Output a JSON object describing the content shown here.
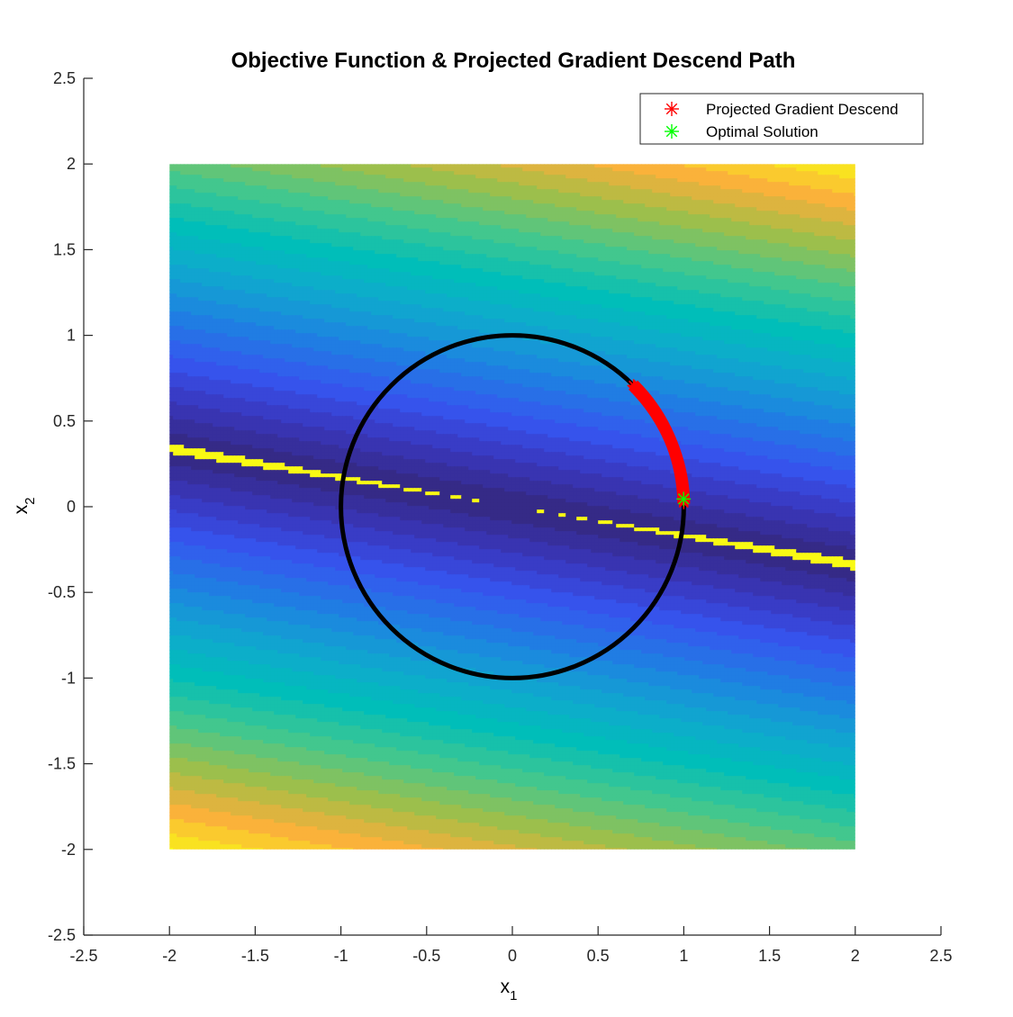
{
  "chart_data": {
    "type": "contour",
    "title": "Objective Function & Projected Gradient Descend Path",
    "xlabel": {
      "base": "x",
      "sub": "1"
    },
    "ylabel": {
      "base": "x",
      "sub": "2"
    },
    "xlim": [
      -2.5,
      2.5
    ],
    "ylim": [
      -2.5,
      2.5
    ],
    "xticks": [
      -2.5,
      -2,
      -1.5,
      -1,
      -0.5,
      0,
      0.5,
      1,
      1.5,
      2,
      2.5
    ],
    "yticks": [
      -2.5,
      -2,
      -1.5,
      -1,
      -0.5,
      0,
      0.5,
      1,
      1.5,
      2,
      2.5
    ],
    "xtick_labels": [
      "-2.5",
      "-2",
      "-1.5",
      "-1",
      "-0.5",
      "0",
      "0.5",
      "1",
      "1.5",
      "2",
      "2.5"
    ],
    "ytick_labels": [
      "-2.5",
      "-2",
      "-1.5",
      "-1",
      "-0.5",
      "0",
      "0.5",
      "1",
      "1.5",
      "2",
      "2.5"
    ],
    "grid": false,
    "legend_position": "top-right",
    "contour_domain": {
      "x": [
        -2,
        2
      ],
      "y": [
        -2,
        2
      ]
    },
    "colormap": "parula",
    "constraint": {
      "type": "circle",
      "center": [
        0,
        0
      ],
      "radius": 1,
      "color": "#000000"
    },
    "series": [
      {
        "name": "Projected Gradient Descend",
        "marker": "asterisk",
        "color": "#ff0000",
        "angle_range_deg": [
          45,
          1.3
        ]
      },
      {
        "name": "Optimal Solution",
        "marker": "asterisk",
        "color": "#00ff00",
        "points": [
          [
            0.999,
            0.045
          ]
        ]
      }
    ]
  }
}
